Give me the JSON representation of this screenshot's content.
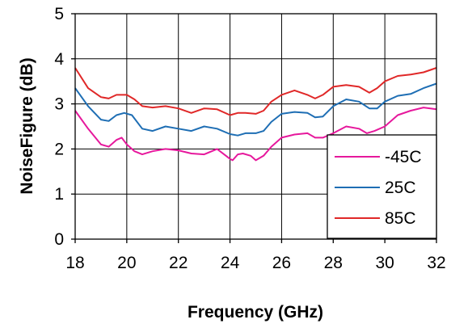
{
  "chart_data": {
    "type": "line",
    "title": "",
    "xlabel": "Frequency (GHz)",
    "ylabel": "NoiseFigure (dB)",
    "xlim": [
      18,
      32
    ],
    "ylim": [
      0,
      5
    ],
    "xticks": [
      18,
      20,
      22,
      24,
      26,
      28,
      30,
      32
    ],
    "yticks": [
      0,
      1,
      2,
      3,
      4,
      5
    ],
    "grid": true,
    "legend_position": "bottom-right",
    "series": [
      {
        "name": "-45C",
        "color": "#e6189c",
        "points": [
          [
            18,
            2.85
          ],
          [
            18.5,
            2.45
          ],
          [
            19,
            2.1
          ],
          [
            19.3,
            2.05
          ],
          [
            19.6,
            2.2
          ],
          [
            19.8,
            2.25
          ],
          [
            20,
            2.1
          ],
          [
            20.3,
            1.95
          ],
          [
            20.6,
            1.88
          ],
          [
            21,
            1.95
          ],
          [
            21.5,
            2.0
          ],
          [
            22,
            1.97
          ],
          [
            22.5,
            1.9
          ],
          [
            23,
            1.88
          ],
          [
            23.5,
            2.0
          ],
          [
            24,
            1.78
          ],
          [
            24.1,
            1.75
          ],
          [
            24.3,
            1.88
          ],
          [
            24.5,
            1.9
          ],
          [
            24.8,
            1.85
          ],
          [
            25,
            1.75
          ],
          [
            25.3,
            1.85
          ],
          [
            25.6,
            2.05
          ],
          [
            26,
            2.25
          ],
          [
            26.5,
            2.32
          ],
          [
            27,
            2.35
          ],
          [
            27.3,
            2.25
          ],
          [
            27.6,
            2.25
          ],
          [
            28,
            2.35
          ],
          [
            28.5,
            2.5
          ],
          [
            29,
            2.45
          ],
          [
            29.3,
            2.35
          ],
          [
            29.6,
            2.4
          ],
          [
            30,
            2.5
          ],
          [
            30.5,
            2.75
          ],
          [
            31,
            2.85
          ],
          [
            31.5,
            2.92
          ],
          [
            32,
            2.88
          ]
        ]
      },
      {
        "name": "25C",
        "color": "#1e6eb4",
        "points": [
          [
            18,
            3.35
          ],
          [
            18.5,
            2.95
          ],
          [
            19,
            2.65
          ],
          [
            19.3,
            2.62
          ],
          [
            19.6,
            2.75
          ],
          [
            19.9,
            2.8
          ],
          [
            20.2,
            2.75
          ],
          [
            20.6,
            2.45
          ],
          [
            21,
            2.4
          ],
          [
            21.5,
            2.5
          ],
          [
            22,
            2.45
          ],
          [
            22.5,
            2.4
          ],
          [
            23,
            2.5
          ],
          [
            23.5,
            2.45
          ],
          [
            24,
            2.33
          ],
          [
            24.3,
            2.3
          ],
          [
            24.6,
            2.35
          ],
          [
            25,
            2.35
          ],
          [
            25.3,
            2.4
          ],
          [
            25.6,
            2.6
          ],
          [
            26,
            2.78
          ],
          [
            26.5,
            2.82
          ],
          [
            27,
            2.8
          ],
          [
            27.3,
            2.7
          ],
          [
            27.6,
            2.72
          ],
          [
            28,
            2.95
          ],
          [
            28.5,
            3.1
          ],
          [
            29,
            3.05
          ],
          [
            29.4,
            2.9
          ],
          [
            29.7,
            2.9
          ],
          [
            30,
            3.05
          ],
          [
            30.5,
            3.18
          ],
          [
            31,
            3.22
          ],
          [
            31.5,
            3.35
          ],
          [
            32,
            3.45
          ]
        ]
      },
      {
        "name": "85C",
        "color": "#e02828",
        "points": [
          [
            18,
            3.8
          ],
          [
            18.5,
            3.35
          ],
          [
            19,
            3.15
          ],
          [
            19.3,
            3.12
          ],
          [
            19.6,
            3.2
          ],
          [
            20,
            3.2
          ],
          [
            20.3,
            3.1
          ],
          [
            20.6,
            2.95
          ],
          [
            21,
            2.92
          ],
          [
            21.5,
            2.95
          ],
          [
            22,
            2.9
          ],
          [
            22.5,
            2.8
          ],
          [
            23,
            2.9
          ],
          [
            23.5,
            2.88
          ],
          [
            24,
            2.75
          ],
          [
            24.3,
            2.8
          ],
          [
            24.6,
            2.8
          ],
          [
            25,
            2.78
          ],
          [
            25.3,
            2.85
          ],
          [
            25.6,
            3.05
          ],
          [
            26,
            3.2
          ],
          [
            26.5,
            3.3
          ],
          [
            27,
            3.2
          ],
          [
            27.3,
            3.12
          ],
          [
            27.6,
            3.2
          ],
          [
            28,
            3.38
          ],
          [
            28.5,
            3.42
          ],
          [
            29,
            3.38
          ],
          [
            29.4,
            3.25
          ],
          [
            29.7,
            3.35
          ],
          [
            30,
            3.5
          ],
          [
            30.5,
            3.62
          ],
          [
            31,
            3.65
          ],
          [
            31.5,
            3.7
          ],
          [
            32,
            3.8
          ]
        ]
      }
    ]
  }
}
